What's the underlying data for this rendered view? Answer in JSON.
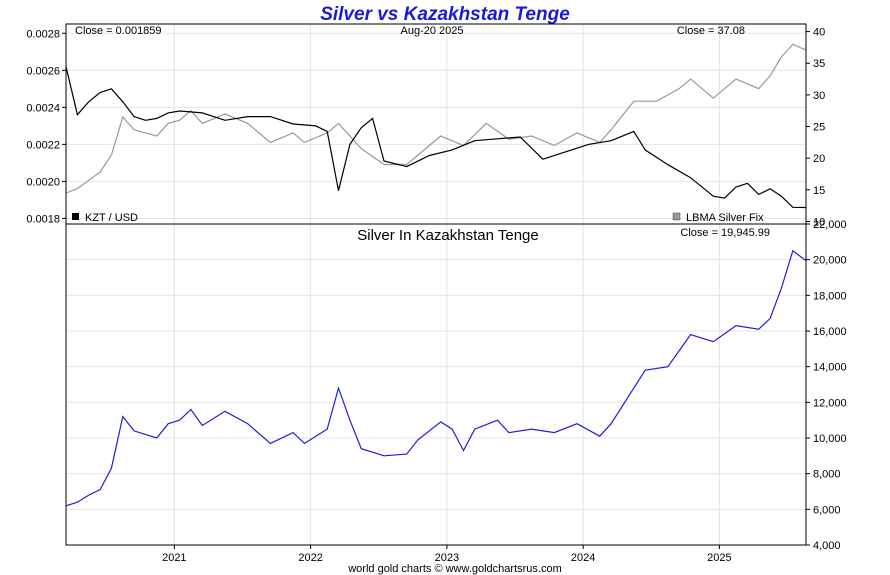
{
  "chart_data": {
    "type": "line",
    "title": "Silver vs Kazakhstan Tenge",
    "footer": "world gold charts © www.goldchartsrus.com",
    "x_tick_labels": [
      "2021",
      "2022",
      "2023",
      "2024",
      "2025"
    ],
    "x_range": [
      "2020-03",
      "2025-08-20"
    ],
    "grid": true,
    "top_panel": {
      "header_left": "Close = 0.001859",
      "header_center": "Aug-20  2025",
      "header_right": "Close = 37.08",
      "left_axis_ticks": [
        "0.0028",
        "0.0026",
        "0.0024",
        "0.0022",
        "0.0020",
        "0.0018"
      ],
      "left_axis_range": [
        0.00177,
        0.00285
      ],
      "right_axis_ticks": [
        "40",
        "35",
        "30",
        "25",
        "20",
        "15",
        "10"
      ],
      "right_axis_range": [
        9.6,
        41.2
      ],
      "series": [
        {
          "name": "KZT / USD",
          "color": "#000000",
          "axis": "left",
          "points": [
            [
              "2020-03",
              0.00262
            ],
            [
              "2020-04",
              0.00236
            ],
            [
              "2020-05",
              0.00243
            ],
            [
              "2020-06",
              0.00248
            ],
            [
              "2020-07",
              0.0025
            ],
            [
              "2020-08",
              0.00243
            ],
            [
              "2020-09",
              0.00235
            ],
            [
              "2020-10",
              0.00233
            ],
            [
              "2020-11",
              0.00234
            ],
            [
              "2020-12",
              0.00237
            ],
            [
              "2021-01",
              0.00238
            ],
            [
              "2021-03",
              0.00237
            ],
            [
              "2021-05",
              0.00233
            ],
            [
              "2021-07",
              0.00235
            ],
            [
              "2021-09",
              0.00235
            ],
            [
              "2021-11",
              0.00231
            ],
            [
              "2022-01",
              0.0023
            ],
            [
              "2022-02",
              0.00227
            ],
            [
              "2022-03",
              0.00195
            ],
            [
              "2022-04",
              0.0022
            ],
            [
              "2022-05",
              0.00229
            ],
            [
              "2022-06",
              0.00234
            ],
            [
              "2022-07",
              0.00211
            ],
            [
              "2022-09",
              0.00208
            ],
            [
              "2022-11",
              0.00214
            ],
            [
              "2023-01",
              0.00217
            ],
            [
              "2023-03",
              0.00222
            ],
            [
              "2023-05",
              0.00223
            ],
            [
              "2023-07",
              0.00224
            ],
            [
              "2023-09",
              0.00212
            ],
            [
              "2023-11",
              0.00216
            ],
            [
              "2024-01",
              0.0022
            ],
            [
              "2024-03",
              0.00222
            ],
            [
              "2024-05",
              0.00227
            ],
            [
              "2024-06",
              0.00217
            ],
            [
              "2024-08",
              0.00209
            ],
            [
              "2024-10",
              0.00202
            ],
            [
              "2024-12",
              0.00192
            ],
            [
              "2025-01",
              0.00191
            ],
            [
              "2025-02",
              0.00197
            ],
            [
              "2025-03",
              0.00199
            ],
            [
              "2025-04",
              0.00193
            ],
            [
              "2025-05",
              0.00196
            ],
            [
              "2025-06",
              0.00192
            ],
            [
              "2025-07",
              0.00186
            ],
            [
              "2025-08-20",
              0.001859
            ]
          ]
        },
        {
          "name": "LBMA Silver Fix",
          "color": "#999999",
          "axis": "right",
          "points": [
            [
              "2020-03",
              14.5
            ],
            [
              "2020-04",
              15.2
            ],
            [
              "2020-05",
              16.5
            ],
            [
              "2020-06",
              17.8
            ],
            [
              "2020-07",
              20.5
            ],
            [
              "2020-08",
              26.5
            ],
            [
              "2020-09",
              24.5
            ],
            [
              "2020-10",
              24.0
            ],
            [
              "2020-11",
              23.5
            ],
            [
              "2020-12",
              25.5
            ],
            [
              "2021-01",
              26.0
            ],
            [
              "2021-02",
              27.5
            ],
            [
              "2021-03",
              25.5
            ],
            [
              "2021-05",
              27.0
            ],
            [
              "2021-07",
              25.5
            ],
            [
              "2021-09",
              22.5
            ],
            [
              "2021-11",
              24.0
            ],
            [
              "2021-12",
              22.5
            ],
            [
              "2022-02",
              24.0
            ],
            [
              "2022-03",
              25.5
            ],
            [
              "2022-05",
              21.5
            ],
            [
              "2022-07",
              19.0
            ],
            [
              "2022-09",
              19.0
            ],
            [
              "2022-10",
              20.5
            ],
            [
              "2022-12",
              23.5
            ],
            [
              "2023-02",
              22.0
            ],
            [
              "2023-04",
              25.5
            ],
            [
              "2023-06",
              23.0
            ],
            [
              "2023-08",
              23.5
            ],
            [
              "2023-10",
              22.0
            ],
            [
              "2023-12",
              24.0
            ],
            [
              "2024-02",
              22.5
            ],
            [
              "2024-03",
              24.5
            ],
            [
              "2024-05",
              29.0
            ],
            [
              "2024-07",
              29.0
            ],
            [
              "2024-09",
              31.0
            ],
            [
              "2024-10",
              32.5
            ],
            [
              "2024-12",
              29.5
            ],
            [
              "2025-02",
              32.5
            ],
            [
              "2025-04",
              31.0
            ],
            [
              "2025-05",
              33.0
            ],
            [
              "2025-06",
              36.0
            ],
            [
              "2025-07",
              38.0
            ],
            [
              "2025-08-20",
              37.08
            ]
          ]
        }
      ]
    },
    "bottom_panel": {
      "subtitle": "Silver In Kazakhstan Tenge",
      "header_right": "Close = 19,945.99",
      "right_axis_ticks": [
        "22,000",
        "20,000",
        "18,000",
        "16,000",
        "14,000",
        "12,000",
        "10,000",
        "8,000",
        "6,000",
        "4,000"
      ],
      "right_axis_range": [
        4000,
        22000
      ],
      "series": [
        {
          "name": "",
          "color": "#1f1fd6",
          "points": [
            [
              "2020-03",
              6200
            ],
            [
              "2020-04",
              6400
            ],
            [
              "2020-05",
              6800
            ],
            [
              "2020-06",
              7100
            ],
            [
              "2020-07",
              8300
            ],
            [
              "2020-08",
              11200
            ],
            [
              "2020-09",
              10400
            ],
            [
              "2020-10",
              10200
            ],
            [
              "2020-11",
              10000
            ],
            [
              "2020-12",
              10800
            ],
            [
              "2021-01",
              11000
            ],
            [
              "2021-02",
              11600
            ],
            [
              "2021-03",
              10700
            ],
            [
              "2021-05",
              11500
            ],
            [
              "2021-07",
              10800
            ],
            [
              "2021-09",
              9700
            ],
            [
              "2021-11",
              10300
            ],
            [
              "2021-12",
              9700
            ],
            [
              "2022-02",
              10500
            ],
            [
              "2022-03",
              12800
            ],
            [
              "2022-04",
              11000
            ],
            [
              "2022-05",
              9400
            ],
            [
              "2022-07",
              9000
            ],
            [
              "2022-09",
              9100
            ],
            [
              "2022-10",
              9900
            ],
            [
              "2022-12",
              10900
            ],
            [
              "2023-01",
              10500
            ],
            [
              "2023-02",
              9300
            ],
            [
              "2023-03",
              10500
            ],
            [
              "2023-05",
              11000
            ],
            [
              "2023-06",
              10300
            ],
            [
              "2023-08",
              10500
            ],
            [
              "2023-10",
              10300
            ],
            [
              "2023-12",
              10800
            ],
            [
              "2024-02",
              10100
            ],
            [
              "2024-03",
              10800
            ],
            [
              "2024-05",
              12800
            ],
            [
              "2024-06",
              13800
            ],
            [
              "2024-08",
              14000
            ],
            [
              "2024-10",
              15800
            ],
            [
              "2024-12",
              15400
            ],
            [
              "2025-02",
              16300
            ],
            [
              "2025-04",
              16100
            ],
            [
              "2025-05",
              16700
            ],
            [
              "2025-06",
              18400
            ],
            [
              "2025-07",
              20500
            ],
            [
              "2025-08-20",
              19945.99
            ]
          ]
        }
      ]
    }
  }
}
